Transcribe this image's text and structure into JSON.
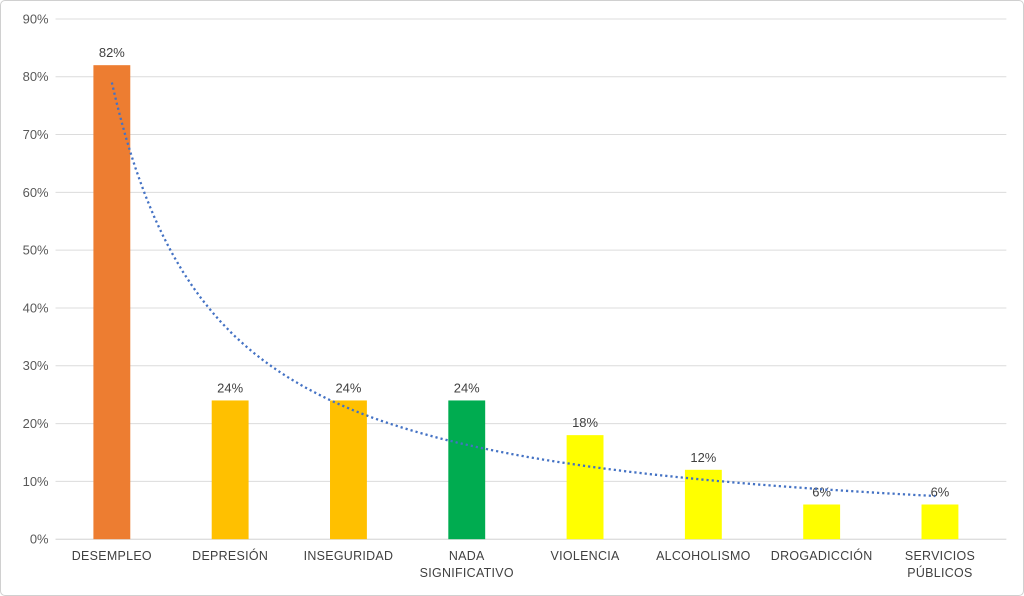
{
  "chart_data": {
    "type": "bar",
    "title": "",
    "xlabel": "",
    "ylabel": "",
    "categories": [
      "DESEMPLEO",
      "DEPRESIÓN",
      "INSEGURIDAD",
      "NADA SIGNIFICATIVO",
      "VIOLENCIA",
      "ALCOHOLISMO",
      "DROGADICCIÓN",
      "SERVICIOS PÚBLICOS"
    ],
    "category_lines": [
      [
        "DESEMPLEO"
      ],
      [
        "DEPRESIÓN"
      ],
      [
        "INSEGURIDAD"
      ],
      [
        "NADA",
        "SIGNIFICATIVO"
      ],
      [
        "VIOLENCIA"
      ],
      [
        "ALCOHOLISMO"
      ],
      [
        "DROGADICCIÓN"
      ],
      [
        "SERVICIOS",
        "PÚBLICOS"
      ]
    ],
    "values": [
      82,
      24,
      24,
      24,
      18,
      12,
      6,
      6
    ],
    "value_labels": [
      "82%",
      "24%",
      "24%",
      "24%",
      "18%",
      "12%",
      "6%",
      "6%"
    ],
    "bar_colors": [
      "#ED7D31",
      "#FFC000",
      "#FFC000",
      "#00AC50",
      "#FFFF00",
      "#FFFF00",
      "#FFFF00",
      "#FFFF00"
    ],
    "ylim": [
      0,
      90
    ],
    "ytick_step": 10,
    "ytick_labels": [
      "0%",
      "10%",
      "20%",
      "30%",
      "40%",
      "50%",
      "60%",
      "70%",
      "80%",
      "90%"
    ],
    "grid": true,
    "legend": "none",
    "trendline": {
      "type": "power",
      "coefficient": 79.0,
      "exponent": -1.137,
      "style": "dotted",
      "color": "#4472C4"
    },
    "colors": {
      "grid": "#DCDCDC",
      "axis": "#C9C9C9",
      "tick_text": "#595959",
      "label_text": "#404040",
      "background": "#FFFFFF",
      "border": "#D0D0D0"
    }
  }
}
